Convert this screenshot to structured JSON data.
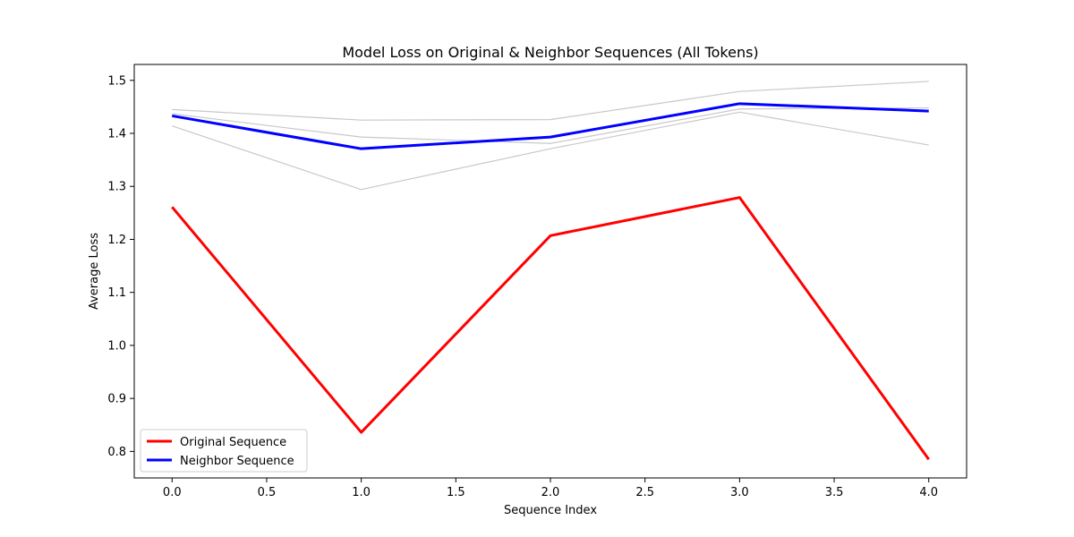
{
  "chart_data": {
    "type": "line",
    "title": "Model Loss on Original & Neighbor Sequences (All Tokens)",
    "xlabel": "Sequence Index",
    "ylabel": "Average Loss",
    "x": [
      0,
      1,
      2,
      3,
      4
    ],
    "xlim": [
      -0.2,
      4.2
    ],
    "ylim": [
      0.75,
      1.53
    ],
    "xticks": [
      "0.0",
      "0.5",
      "1.0",
      "1.5",
      "2.0",
      "2.5",
      "3.0",
      "3.5",
      "4.0"
    ],
    "yticks": [
      "0.8",
      "0.9",
      "1.0",
      "1.1",
      "1.2",
      "1.3",
      "1.4",
      "1.5"
    ],
    "grid": false,
    "legend_position": "lower-left",
    "background_series": [
      {
        "color": "#c8c8c8",
        "values": [
          1.445,
          1.425,
          1.426,
          1.479,
          1.498
        ]
      },
      {
        "color": "#c8c8c8",
        "values": [
          1.437,
          1.393,
          1.381,
          1.446,
          1.448
        ]
      },
      {
        "color": "#c8c8c8",
        "values": [
          1.414,
          1.294,
          1.371,
          1.44,
          1.378
        ]
      }
    ],
    "series": [
      {
        "name": "Original Sequence",
        "color": "#ff0000",
        "values": [
          1.261,
          0.836,
          1.207,
          1.279,
          0.785
        ]
      },
      {
        "name": "Neighbor Sequence",
        "color": "#0000ff",
        "values": [
          1.433,
          1.371,
          1.393,
          1.456,
          1.442
        ]
      }
    ]
  }
}
